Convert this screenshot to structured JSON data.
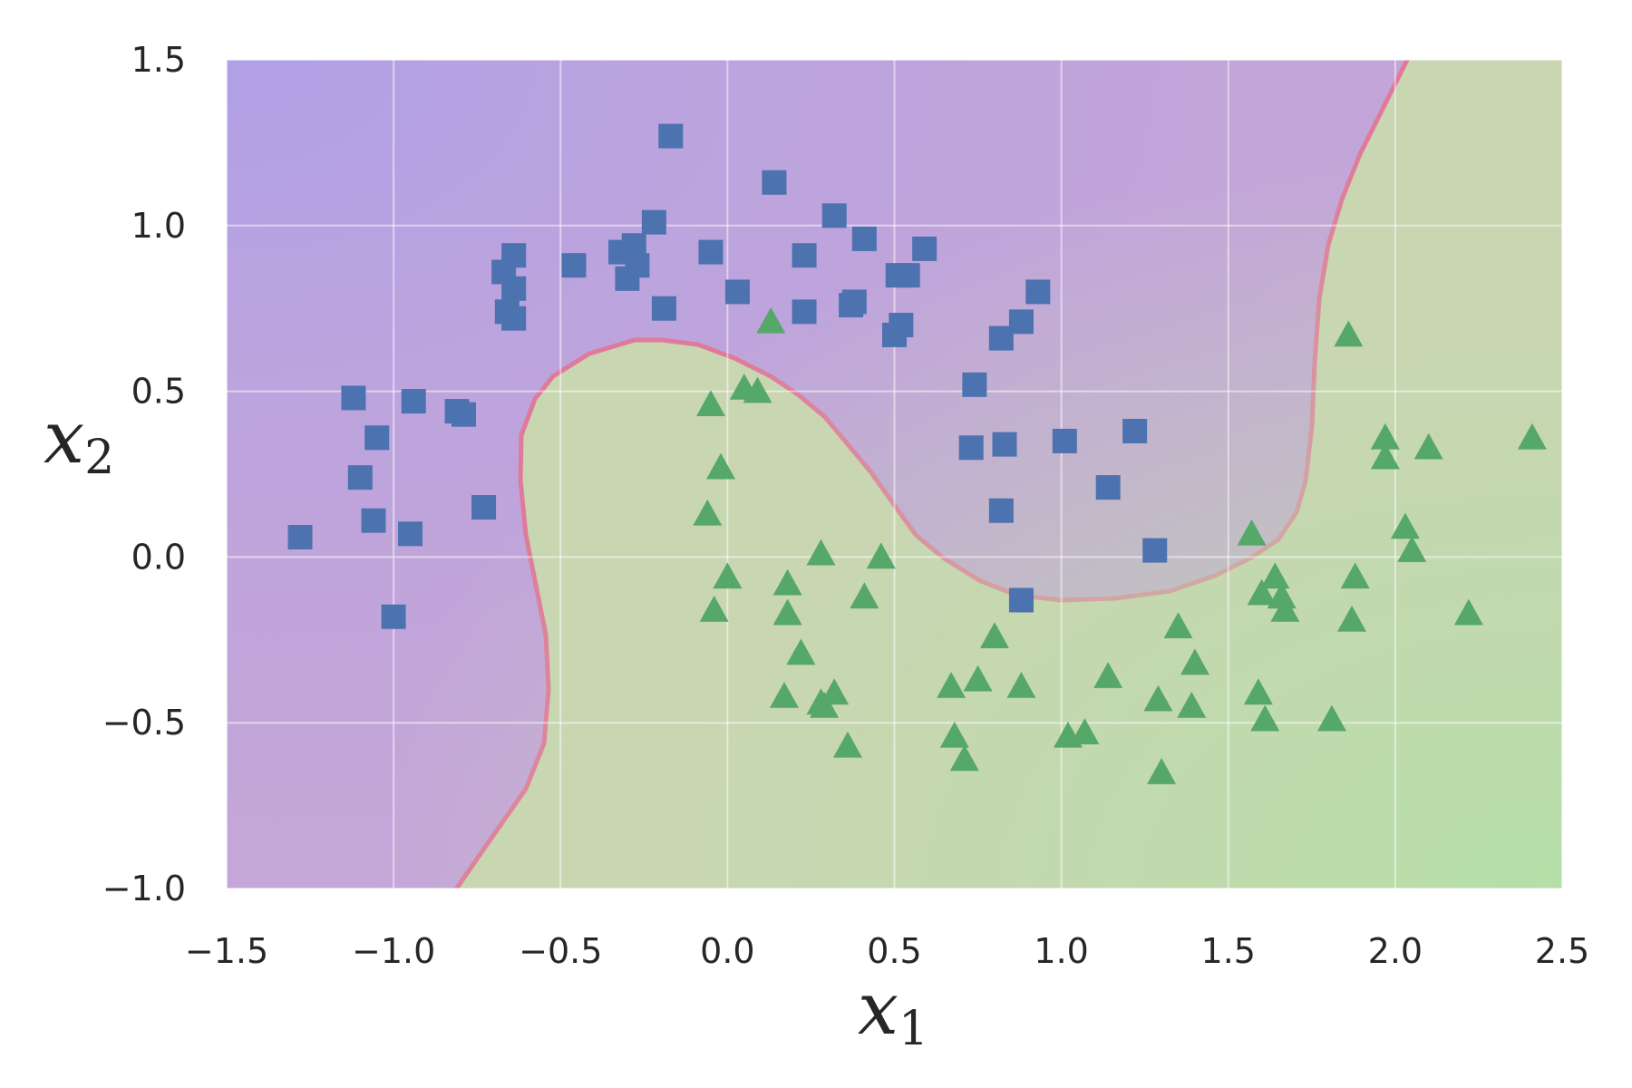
{
  "chart_data": {
    "type": "scatter",
    "title": "",
    "xlabel": "x",
    "xlabel_sub": "1",
    "ylabel": "x",
    "ylabel_sub": "2",
    "xlim": [
      -1.5,
      2.5
    ],
    "ylim": [
      -1.0,
      1.5
    ],
    "x_ticks": [
      "−1.5",
      "−1.0",
      "−0.5",
      "0.0",
      "0.5",
      "1.0",
      "1.5",
      "2.0",
      "2.5"
    ],
    "y_ticks": [
      "−1.0",
      "−0.5",
      "0.0",
      "0.5",
      "1.0",
      "1.5"
    ],
    "grid": true,
    "background": "decision regions: purple (class 0) vs green (class 1)",
    "colors": {
      "class0_marker": "#4c72b0",
      "class1_marker": "#55a868",
      "region0": "#c4a6d8",
      "region1": "#c9d6b2",
      "boundary": "#e07a9a"
    },
    "series": [
      {
        "marker": "square",
        "points": [
          [
            -0.17,
            1.27
          ],
          [
            0.14,
            1.13
          ],
          [
            0.32,
            1.03
          ],
          [
            -0.22,
            1.01
          ],
          [
            0.41,
            0.96
          ],
          [
            -0.28,
            0.94
          ],
          [
            -0.32,
            0.92
          ],
          [
            -0.05,
            0.92
          ],
          [
            -0.64,
            0.91
          ],
          [
            0.59,
            0.93
          ],
          [
            0.23,
            0.91
          ],
          [
            -0.46,
            0.88
          ],
          [
            -0.27,
            0.88
          ],
          [
            -0.67,
            0.86
          ],
          [
            0.51,
            0.85
          ],
          [
            0.54,
            0.85
          ],
          [
            -0.3,
            0.84
          ],
          [
            -0.64,
            0.81
          ],
          [
            0.03,
            0.8
          ],
          [
            0.93,
            0.8
          ],
          [
            0.38,
            0.77
          ],
          [
            0.37,
            0.76
          ],
          [
            -0.19,
            0.75
          ],
          [
            -0.66,
            0.74
          ],
          [
            0.23,
            0.74
          ],
          [
            -0.64,
            0.72
          ],
          [
            0.88,
            0.71
          ],
          [
            0.52,
            0.7
          ],
          [
            0.5,
            0.67
          ],
          [
            0.82,
            0.66
          ],
          [
            0.74,
            0.52
          ],
          [
            -1.12,
            0.48
          ],
          [
            -0.94,
            0.47
          ],
          [
            -0.81,
            0.44
          ],
          [
            -0.79,
            0.43
          ],
          [
            -1.05,
            0.36
          ],
          [
            1.01,
            0.35
          ],
          [
            1.22,
            0.38
          ],
          [
            0.73,
            0.33
          ],
          [
            0.83,
            0.34
          ],
          [
            -1.1,
            0.24
          ],
          [
            1.14,
            0.21
          ],
          [
            -0.73,
            0.15
          ],
          [
            0.82,
            0.14
          ],
          [
            -1.06,
            0.11
          ],
          [
            -0.95,
            0.07
          ],
          [
            -1.28,
            0.06
          ],
          [
            1.28,
            0.02
          ],
          [
            0.88,
            -0.13
          ],
          [
            -1.0,
            -0.18
          ]
        ]
      },
      {
        "marker": "triangle",
        "points": [
          [
            0.13,
            0.71
          ],
          [
            1.86,
            0.67
          ],
          [
            0.05,
            0.51
          ],
          [
            0.09,
            0.5
          ],
          [
            -0.05,
            0.46
          ],
          [
            2.41,
            0.36
          ],
          [
            1.97,
            0.36
          ],
          [
            2.1,
            0.33
          ],
          [
            1.97,
            0.3
          ],
          [
            -0.02,
            0.27
          ],
          [
            -0.06,
            0.13
          ],
          [
            2.03,
            0.09
          ],
          [
            1.57,
            0.07
          ],
          [
            2.05,
            0.02
          ],
          [
            0.28,
            0.01
          ],
          [
            0.46,
            0.0
          ],
          [
            0.0,
            -0.06
          ],
          [
            1.64,
            -0.06
          ],
          [
            1.88,
            -0.06
          ],
          [
            0.18,
            -0.08
          ],
          [
            1.6,
            -0.11
          ],
          [
            0.41,
            -0.12
          ],
          [
            1.66,
            -0.12
          ],
          [
            -0.04,
            -0.16
          ],
          [
            0.18,
            -0.17
          ],
          [
            1.67,
            -0.16
          ],
          [
            2.22,
            -0.17
          ],
          [
            1.87,
            -0.19
          ],
          [
            1.35,
            -0.21
          ],
          [
            0.8,
            -0.24
          ],
          [
            0.22,
            -0.29
          ],
          [
            1.4,
            -0.32
          ],
          [
            1.14,
            -0.36
          ],
          [
            0.75,
            -0.37
          ],
          [
            0.88,
            -0.39
          ],
          [
            0.67,
            -0.39
          ],
          [
            0.32,
            -0.41
          ],
          [
            1.59,
            -0.41
          ],
          [
            0.17,
            -0.42
          ],
          [
            1.29,
            -0.43
          ],
          [
            0.28,
            -0.44
          ],
          [
            0.29,
            -0.45
          ],
          [
            1.39,
            -0.45
          ],
          [
            1.61,
            -0.49
          ],
          [
            1.81,
            -0.49
          ],
          [
            1.07,
            -0.53
          ],
          [
            1.02,
            -0.54
          ],
          [
            0.68,
            -0.54
          ],
          [
            0.36,
            -0.57
          ],
          [
            0.71,
            -0.61
          ],
          [
            1.3,
            -0.65
          ]
        ]
      }
    ]
  }
}
